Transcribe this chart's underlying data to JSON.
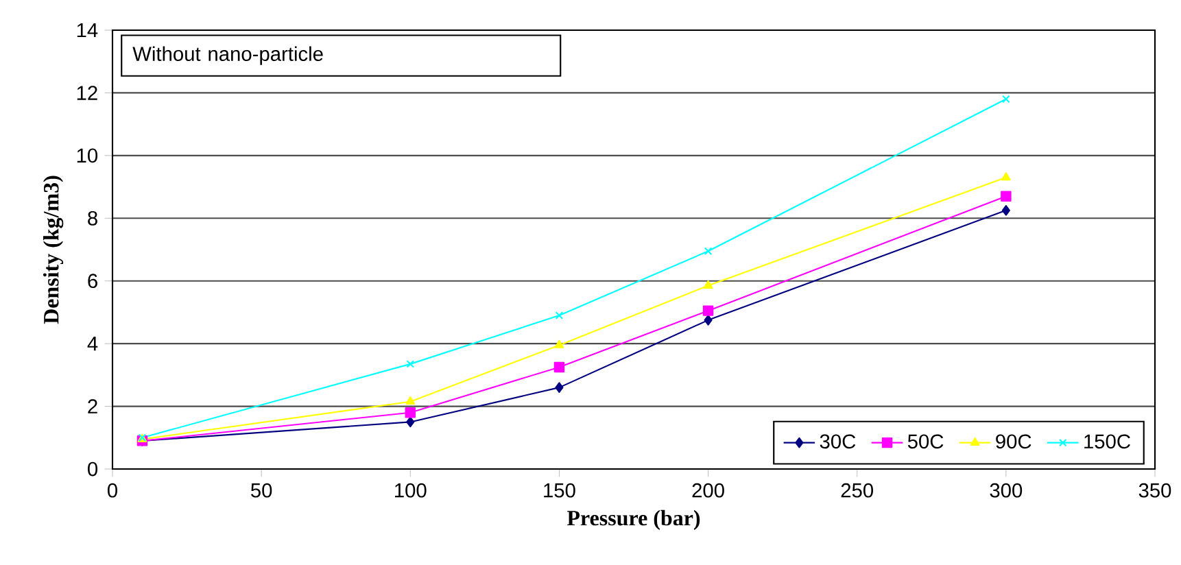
{
  "chart_data": {
    "type": "line",
    "xlabel": "Pressure (bar)",
    "ylabel": "Density (kg/m3)",
    "annotations": [
      "Without nano-particle"
    ],
    "x": [
      10,
      100,
      150,
      200,
      300
    ],
    "series": [
      {
        "name": "30C",
        "color": "#000080",
        "marker": "diamond",
        "values": [
          0.9,
          1.5,
          2.6,
          4.75,
          8.25
        ]
      },
      {
        "name": "50C",
        "color": "#ff00ff",
        "marker": "square",
        "values": [
          0.9,
          1.8,
          3.25,
          5.05,
          8.7
        ]
      },
      {
        "name": "90C",
        "color": "#ffff00",
        "marker": "triangle",
        "values": [
          0.95,
          2.15,
          3.95,
          5.85,
          9.3
        ]
      },
      {
        "name": "150C",
        "color": "#00ffff",
        "marker": "cross",
        "values": [
          1.0,
          3.35,
          4.9,
          6.95,
          11.8
        ]
      }
    ],
    "xlim": [
      0,
      350
    ],
    "ylim": [
      0,
      14
    ],
    "xticks": [
      0,
      50,
      100,
      150,
      200,
      250,
      300,
      350
    ],
    "yticks": [
      0,
      2,
      4,
      6,
      8,
      10,
      12,
      14
    ],
    "grid": "y",
    "legend": "bottom right",
    "line_style": "solid"
  }
}
